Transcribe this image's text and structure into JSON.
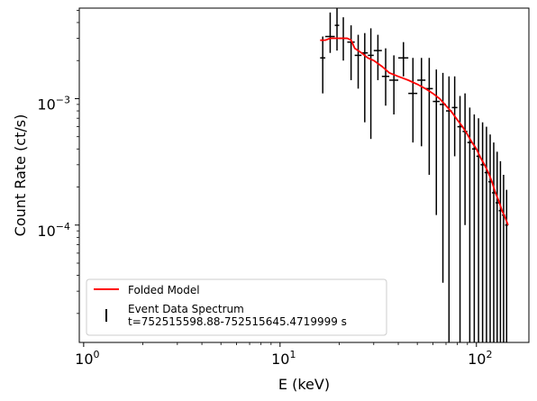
{
  "chart_data": {
    "type": "line",
    "x_scale": "log",
    "y_scale": "log",
    "xlim": [
      0.95,
      185
    ],
    "ylim": [
      1.18e-05,
      0.0052
    ],
    "xlabel": "E (keV)",
    "ylabel": "Count Rate (ct/s)",
    "x_ticks": [
      {
        "value": 1,
        "label": "10^0"
      },
      {
        "value": 10,
        "label": "10^1"
      },
      {
        "value": 100,
        "label": "10^2"
      }
    ],
    "y_ticks": [
      {
        "value": 0.0001,
        "label": "10^-4"
      },
      {
        "value": 0.001,
        "label": "10^-3"
      }
    ],
    "legend": {
      "position": "lower-left",
      "entries": [
        {
          "label": "Folded Model",
          "color": "#ff0000",
          "marker": "line"
        },
        {
          "label": "Event Data Spectrum",
          "sublabel": "t=752515598.88-752515645.4719999 s",
          "color": "#000000",
          "marker": "errorbar"
        }
      ]
    },
    "series": [
      {
        "name": "Folded Model",
        "color": "#ff0000",
        "x": [
          16.0,
          17.0,
          18.0,
          19.0,
          20.0,
          22.0,
          23.0,
          24.0,
          26.0,
          28.0,
          30.0,
          33.0,
          36.0,
          40.0,
          45.0,
          50.0,
          55.0,
          60.0,
          65.0,
          70.0,
          75.0,
          80.0,
          85.0,
          90.0,
          95.0,
          100.0,
          105.0,
          110.0,
          115.0,
          120.0,
          125.0,
          130.0,
          135.0,
          140.0,
          145.0
        ],
        "y": [
          0.0029,
          0.0029,
          0.003,
          0.003,
          0.003,
          0.003,
          0.0029,
          0.0025,
          0.0023,
          0.0021,
          0.002,
          0.0018,
          0.0016,
          0.0015,
          0.0014,
          0.0013,
          0.0012,
          0.0011,
          0.001,
          0.00088,
          0.00078,
          0.00068,
          0.0006,
          0.00052,
          0.00045,
          0.0004,
          0.00034,
          0.0003,
          0.00026,
          0.00022,
          0.00018,
          0.000155,
          0.00013,
          0.000115,
          0.0001
        ]
      },
      {
        "name": "Event Data Spectrum",
        "color": "#000000",
        "points": [
          {
            "x": 16.5,
            "y": 0.0021,
            "xlo": 16.0,
            "xhi": 17.0,
            "ylo": 0.0011,
            "yhi": 0.0031
          },
          {
            "x": 18.0,
            "y": 0.0031,
            "xlo": 17.0,
            "xhi": 19.0,
            "ylo": 0.0023,
            "yhi": 0.0048
          },
          {
            "x": 19.5,
            "y": 0.0038,
            "xlo": 19.0,
            "xhi": 20.0,
            "ylo": 0.0024,
            "yhi": 0.0052
          },
          {
            "x": 21.0,
            "y": 0.003,
            "xlo": 20.0,
            "xhi": 22.0,
            "ylo": 0.002,
            "yhi": 0.0044
          },
          {
            "x": 23.0,
            "y": 0.0028,
            "xlo": 22.0,
            "xhi": 24.0,
            "ylo": 0.0014,
            "yhi": 0.0038
          },
          {
            "x": 25.0,
            "y": 0.0022,
            "xlo": 24.0,
            "xhi": 26.0,
            "ylo": 0.0012,
            "yhi": 0.0032
          },
          {
            "x": 27.0,
            "y": 0.0023,
            "xlo": 26.0,
            "xhi": 28.0,
            "ylo": 0.00065,
            "yhi": 0.0033
          },
          {
            "x": 29.0,
            "y": 0.0022,
            "xlo": 28.0,
            "xhi": 30.0,
            "ylo": 0.00048,
            "yhi": 0.0036
          },
          {
            "x": 31.5,
            "y": 0.0024,
            "xlo": 30.0,
            "xhi": 33.0,
            "ylo": 0.0014,
            "yhi": 0.0032
          },
          {
            "x": 34.5,
            "y": 0.0015,
            "xlo": 33.0,
            "xhi": 36.0,
            "ylo": 0.00088,
            "yhi": 0.0025
          },
          {
            "x": 38.0,
            "y": 0.0014,
            "xlo": 36.0,
            "xhi": 40.0,
            "ylo": 0.00075,
            "yhi": 0.0022
          },
          {
            "x": 42.5,
            "y": 0.0021,
            "xlo": 40.0,
            "xhi": 45.0,
            "ylo": 0.0015,
            "yhi": 0.0028
          },
          {
            "x": 47.5,
            "y": 0.0011,
            "xlo": 45.0,
            "xhi": 50.0,
            "ylo": 0.00045,
            "yhi": 0.0021
          },
          {
            "x": 52.5,
            "y": 0.0014,
            "xlo": 50.0,
            "xhi": 55.0,
            "ylo": 0.00042,
            "yhi": 0.0021
          },
          {
            "x": 57.5,
            "y": 0.0012,
            "xlo": 55.0,
            "xhi": 60.0,
            "ylo": 0.00025,
            "yhi": 0.0021
          },
          {
            "x": 62.5,
            "y": 0.00095,
            "xlo": 60.0,
            "xhi": 65.0,
            "ylo": 0.00012,
            "yhi": 0.0017
          },
          {
            "x": 67.5,
            "y": 0.0009,
            "xlo": 65.0,
            "xhi": 70.0,
            "ylo": 3.5e-05,
            "yhi": 0.0016
          },
          {
            "x": 72.5,
            "y": 0.0008,
            "xlo": 70.0,
            "xhi": 75.0,
            "ylo": 1.18e-05,
            "yhi": 0.0015
          },
          {
            "x": 77.5,
            "y": 0.00085,
            "xlo": 75.0,
            "xhi": 80.0,
            "ylo": 0.00035,
            "yhi": 0.0015
          },
          {
            "x": 82.5,
            "y": 0.0006,
            "xlo": 80.0,
            "xhi": 85.0,
            "ylo": 1.18e-05,
            "yhi": 0.00105
          },
          {
            "x": 87.5,
            "y": 0.00055,
            "xlo": 85.0,
            "xhi": 90.0,
            "ylo": 0.0001,
            "yhi": 0.0011
          },
          {
            "x": 92.5,
            "y": 0.00045,
            "xlo": 90.0,
            "xhi": 95.0,
            "ylo": 1.18e-05,
            "yhi": 0.00085
          },
          {
            "x": 97.5,
            "y": 0.0004,
            "xlo": 95.0,
            "xhi": 100.0,
            "ylo": 1.18e-05,
            "yhi": 0.00075
          },
          {
            "x": 102.5,
            "y": 0.00035,
            "xlo": 100.0,
            "xhi": 105.0,
            "ylo": 1.18e-05,
            "yhi": 0.0007
          },
          {
            "x": 107.5,
            "y": 0.0003,
            "xlo": 105.0,
            "xhi": 110.0,
            "ylo": 1.18e-05,
            "yhi": 0.00065
          },
          {
            "x": 112.5,
            "y": 0.00026,
            "xlo": 110.0,
            "xhi": 115.0,
            "ylo": 1.18e-05,
            "yhi": 0.0006
          },
          {
            "x": 117.5,
            "y": 0.00022,
            "xlo": 115.0,
            "xhi": 120.0,
            "ylo": 1.18e-05,
            "yhi": 0.00052
          },
          {
            "x": 122.5,
            "y": 0.00018,
            "xlo": 120.0,
            "xhi": 125.0,
            "ylo": 1.18e-05,
            "yhi": 0.00045
          },
          {
            "x": 127.5,
            "y": 0.00015,
            "xlo": 125.0,
            "xhi": 130.0,
            "ylo": 1.18e-05,
            "yhi": 0.00038
          },
          {
            "x": 132.5,
            "y": 0.00013,
            "xlo": 130.0,
            "xhi": 135.0,
            "ylo": 1.18e-05,
            "yhi": 0.00032
          },
          {
            "x": 137.5,
            "y": 0.00012,
            "xlo": 135.0,
            "xhi": 140.0,
            "ylo": 1.18e-05,
            "yhi": 0.00025
          },
          {
            "x": 142.5,
            "y": 0.0001,
            "xlo": 140.0,
            "xhi": 145.0,
            "ylo": 1.18e-05,
            "yhi": 0.00019
          }
        ]
      }
    ]
  }
}
